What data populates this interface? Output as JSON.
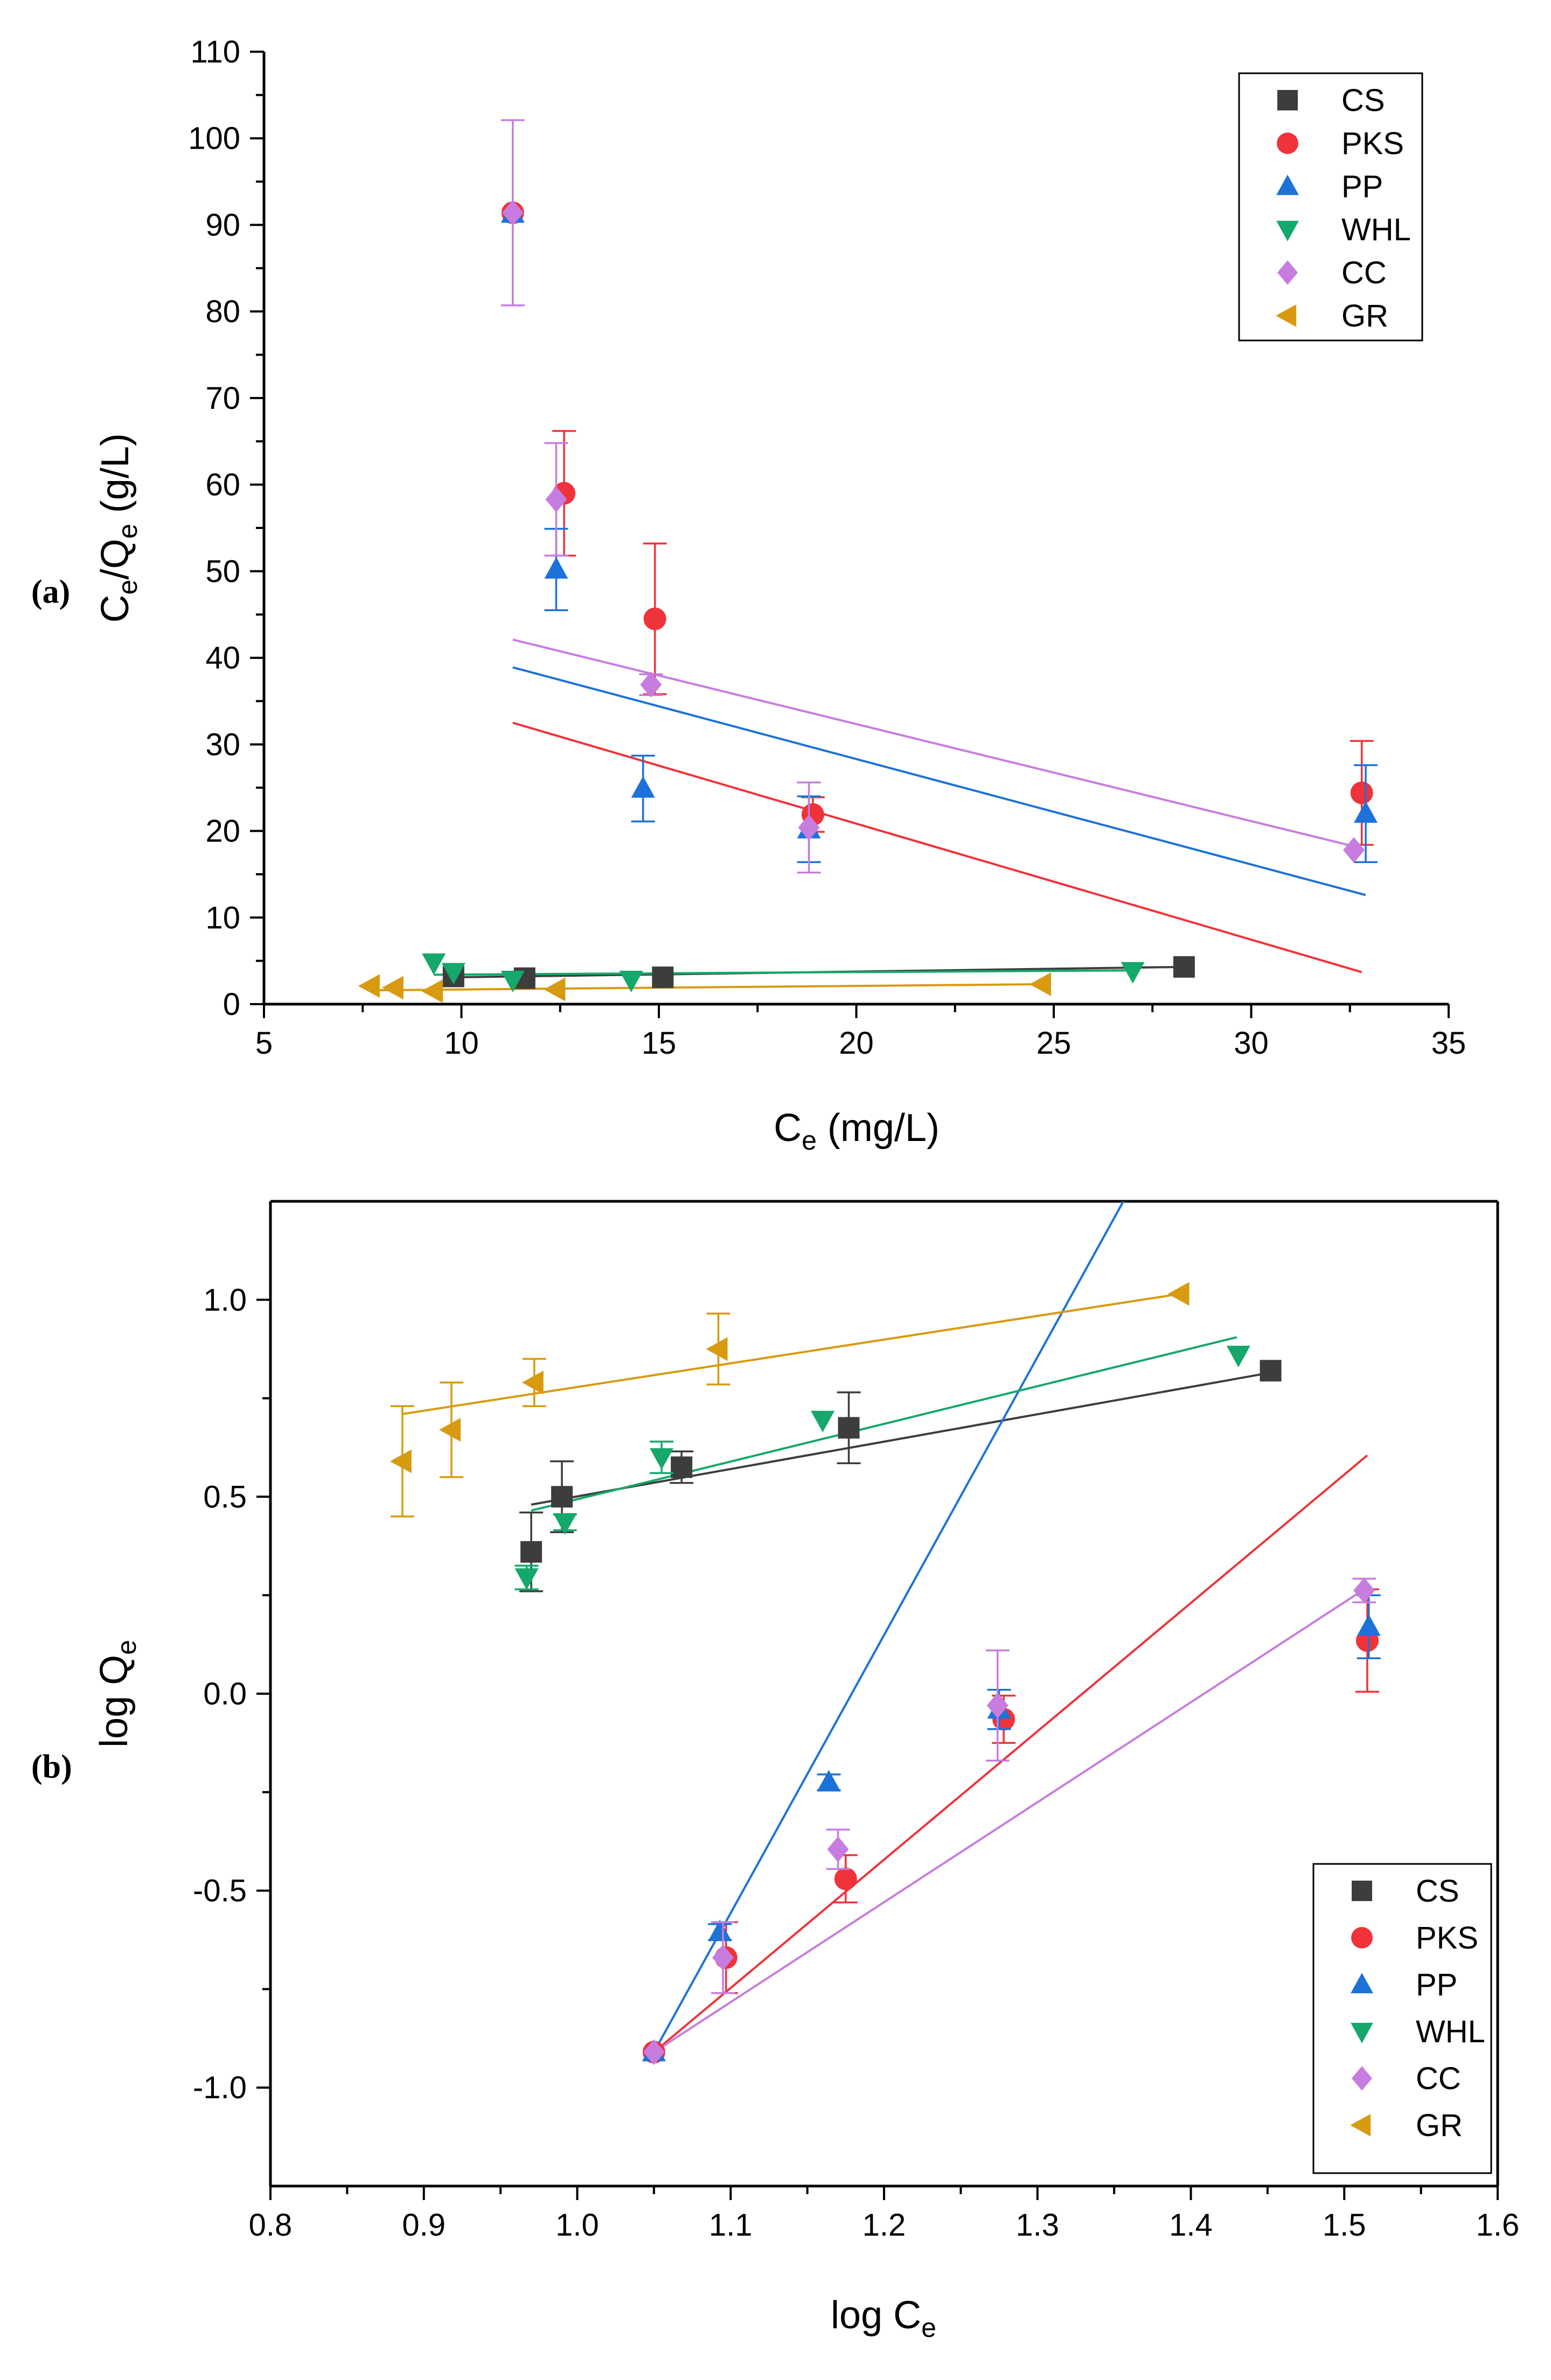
{
  "panels": {
    "a": "(a)",
    "b": "(b)"
  },
  "colors": {
    "CS": "#3d3d3d",
    "PKS": "#f0323a",
    "PP": "#1c72d8",
    "WHL": "#14a86a",
    "CC": "#c77ce0",
    "GR": "#d89a10"
  },
  "chart_data": [
    {
      "id": "a",
      "type": "scatter",
      "title": "",
      "xlabel": "Ce (mg/L)",
      "ylabel": "Ce/Qe (g/L)",
      "xlabel_parts": {
        "main": "C",
        "sub": "e",
        "rest": " (mg/L)"
      },
      "ylabel_parts": {
        "m1": "C",
        "s1": "e",
        "mid": "/Q",
        "s2": "e",
        "rest": " (g/L)"
      },
      "xlim": [
        5,
        35
      ],
      "ylim": [
        0,
        110
      ],
      "xticks": [
        5,
        10,
        15,
        20,
        25,
        30,
        35
      ],
      "xtick_labels": [
        "5",
        "10",
        "15",
        "20",
        "25",
        "30",
        "35"
      ],
      "yticks": [
        0,
        10,
        20,
        30,
        40,
        50,
        60,
        70,
        80,
        90,
        100,
        110
      ],
      "ytick_labels": [
        "0",
        "10",
        "20",
        "30",
        "40",
        "50",
        "60",
        "70",
        "80",
        "90",
        "100",
        "110"
      ],
      "legend_position": "top-right",
      "series": [
        {
          "name": "CS",
          "marker": "square",
          "points": [
            [
              9.8,
              3.2,
              0
            ],
            [
              11.6,
              3.0,
              0
            ],
            [
              15.1,
              3.1,
              0
            ],
            [
              28.3,
              4.3,
              0
            ]
          ],
          "fit": [
            [
              9.8,
              3.1
            ],
            [
              28.3,
              4.3
            ]
          ]
        },
        {
          "name": "PKS",
          "marker": "circle",
          "points": [
            [
              11.3,
              91.4,
              0
            ],
            [
              12.6,
              59.0,
              7.2
            ],
            [
              14.9,
              44.5,
              8.7
            ],
            [
              18.9,
              21.9,
              2.0
            ],
            [
              32.8,
              24.4,
              6.0
            ]
          ],
          "fit": [
            [
              11.3,
              32.5
            ],
            [
              32.8,
              3.7
            ]
          ]
        },
        {
          "name": "PP",
          "marker": "triangle-up",
          "points": [
            [
              11.3,
              91.3,
              0
            ],
            [
              12.4,
              50.2,
              4.7
            ],
            [
              14.6,
              24.9,
              3.8
            ],
            [
              18.8,
              20.2,
              3.8
            ],
            [
              32.9,
              22.0,
              5.6
            ]
          ],
          "fit": [
            [
              11.3,
              38.9
            ],
            [
              32.9,
              12.6
            ]
          ]
        },
        {
          "name": "WHL",
          "marker": "triangle-down",
          "points": [
            [
              9.3,
              4.8,
              0
            ],
            [
              9.8,
              3.7,
              0
            ],
            [
              11.3,
              2.8,
              0
            ],
            [
              14.3,
              2.8,
              0
            ],
            [
              27.0,
              3.8,
              0
            ]
          ],
          "fit": [
            [
              9.3,
              3.4
            ],
            [
              27.0,
              3.9
            ]
          ]
        },
        {
          "name": "CC",
          "marker": "diamond",
          "points": [
            [
              11.3,
              91.4,
              10.7
            ],
            [
              12.4,
              58.3,
              6.5
            ],
            [
              14.8,
              36.9,
              1.2
            ],
            [
              18.8,
              20.4,
              5.2
            ],
            [
              32.6,
              17.8,
              0
            ]
          ],
          "fit": [
            [
              11.3,
              42.1
            ],
            [
              32.8,
              18.0
            ]
          ]
        },
        {
          "name": "GR",
          "marker": "triangle-left",
          "points": [
            [
              7.7,
              2.1,
              0
            ],
            [
              8.3,
              1.9,
              0
            ],
            [
              9.3,
              1.5,
              0
            ],
            [
              12.4,
              1.7,
              0
            ],
            [
              24.7,
              2.3,
              0
            ]
          ],
          "fit": [
            [
              7.7,
              1.6
            ],
            [
              24.7,
              2.3
            ]
          ]
        }
      ]
    },
    {
      "id": "b",
      "type": "scatter",
      "title": "",
      "xlabel": "log Ce",
      "ylabel": "log Qe",
      "xlabel_parts": {
        "main": "log C",
        "sub": "e"
      },
      "ylabel_parts": {
        "main": "log Q",
        "sub": "e"
      },
      "xlim": [
        0.8,
        1.6
      ],
      "ylim": [
        -1.25,
        1.25
      ],
      "xticks": [
        0.8,
        0.9,
        1.0,
        1.1,
        1.2,
        1.3,
        1.4,
        1.5,
        1.6
      ],
      "xtick_labels": [
        "0.8",
        "0.9",
        "1.0",
        "1.1",
        "1.2",
        "1.3",
        "1.4",
        "1.5",
        "1.6"
      ],
      "yticks": [
        -1.0,
        -0.5,
        0.0,
        0.5,
        1.0
      ],
      "ytick_labels": [
        "-1.0",
        "-0.5",
        "0.0",
        "0.5",
        "1.0"
      ],
      "legend_position": "bottom-right",
      "series": [
        {
          "name": "CS",
          "marker": "square",
          "points": [
            [
              0.97,
              0.36,
              0.1
            ],
            [
              0.99,
              0.5,
              0.09
            ],
            [
              1.068,
              0.575,
              0.04
            ],
            [
              1.177,
              0.675,
              0.09
            ],
            [
              1.452,
              0.82,
              0
            ]
          ],
          "fit": [
            [
              0.97,
              0.48
            ],
            [
              1.452,
              0.815
            ]
          ]
        },
        {
          "name": "PKS",
          "marker": "circle",
          "points": [
            [
              1.05,
              -0.91,
              0
            ],
            [
              1.097,
              -0.67,
              0.09
            ],
            [
              1.175,
              -0.47,
              0.06
            ],
            [
              1.278,
              -0.065,
              0.06
            ],
            [
              1.515,
              0.135,
              0.13
            ]
          ],
          "fit": [
            [
              1.05,
              -0.91
            ],
            [
              1.515,
              0.605
            ]
          ]
        },
        {
          "name": "PP",
          "marker": "triangle-up",
          "points": [
            [
              1.05,
              -0.91,
              0
            ],
            [
              1.093,
              -0.605,
              0.02
            ],
            [
              1.164,
              -0.225,
              0.02
            ],
            [
              1.275,
              -0.04,
              0.05
            ],
            [
              1.516,
              0.17,
              0.08
            ]
          ],
          "fit": [
            [
              1.05,
              -0.91
            ],
            [
              1.356,
              1.25
            ]
          ]
        },
        {
          "name": "WHL",
          "marker": "triangle-down",
          "points": [
            [
              0.967,
              0.295,
              0.03
            ],
            [
              0.992,
              0.435,
              0.02
            ],
            [
              1.055,
              0.6,
              0.04
            ],
            [
              1.16,
              0.695,
              0
            ],
            [
              1.431,
              0.86,
              0
            ]
          ],
          "fit": [
            [
              0.97,
              0.465
            ],
            [
              1.43,
              0.905
            ]
          ]
        },
        {
          "name": "CC",
          "marker": "diamond",
          "points": [
            [
              1.05,
              -0.91,
              0
            ],
            [
              1.095,
              -0.67,
              0.09
            ],
            [
              1.17,
              -0.395,
              0.05
            ],
            [
              1.274,
              -0.03,
              0.14
            ],
            [
              1.513,
              0.262,
              0.03
            ]
          ],
          "fit": [
            [
              1.05,
              -0.91
            ],
            [
              1.515,
              0.27
            ]
          ]
        },
        {
          "name": "GR",
          "marker": "triangle-left",
          "points": [
            [
              0.886,
              0.59,
              0.14
            ],
            [
              0.918,
              0.67,
              0.12
            ],
            [
              0.972,
              0.79,
              0.06
            ],
            [
              1.092,
              0.875,
              0.09
            ],
            [
              1.393,
              1.015,
              0
            ]
          ],
          "fit": [
            [
              0.886,
              0.71
            ],
            [
              1.393,
              1.015
            ]
          ]
        }
      ]
    }
  ]
}
